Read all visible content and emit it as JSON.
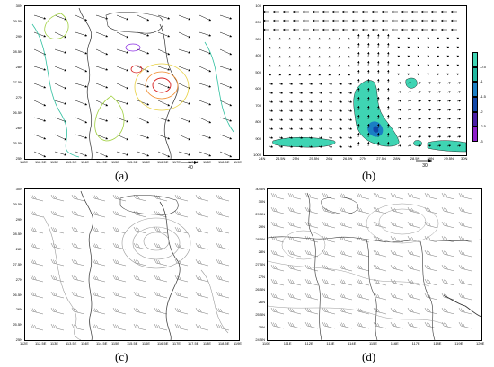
{
  "figure": {
    "panels": [
      {
        "label": "(a)",
        "map": true,
        "y_ticks": [
          "30N",
          "29.5N",
          "29N",
          "28.5N",
          "28N",
          "27.5N",
          "27N",
          "26.5N",
          "26N",
          "25.5N",
          "25N"
        ],
        "x_ticks": [
          "112E",
          "112.5E",
          "113E",
          "113.5E",
          "114E",
          "114.5E",
          "115E",
          "115.5E",
          "116E",
          "116.5E",
          "117E",
          "117.5E",
          "118E",
          "118.5E",
          "119E"
        ],
        "ref_vector": "40",
        "contours_colored": true
      },
      {
        "label": "(b)",
        "map": false,
        "y_ticks": [
          "100",
          "200",
          "300",
          "400",
          "500",
          "600",
          "700",
          "800",
          "900",
          "1000"
        ],
        "x_ticks": [
          "24N",
          "24.5N",
          "25N",
          "25.5N",
          "26N",
          "26.5N",
          "27N",
          "27.5N",
          "28N",
          "28.5N",
          "29N",
          "29.5N",
          "30N"
        ],
        "ref_vector": "30",
        "colorbar": {
          "labels": [
            "-0.5",
            "-1",
            "-1.5",
            "-2",
            "-2.5",
            "-3"
          ],
          "colors": [
            "#3fd4b3",
            "#21b8a0",
            "#1a7fc4",
            "#1046a8",
            "#4a1ea6",
            "#8d1ec9"
          ]
        }
      },
      {
        "label": "(c)",
        "map": true,
        "y_ticks": [
          "30N",
          "29.5N",
          "29N",
          "28.5N",
          "28N",
          "27.5N",
          "27N",
          "26.5N",
          "26N",
          "25.5N",
          "25N"
        ],
        "x_ticks": [
          "112E",
          "112.5E",
          "113E",
          "113.5E",
          "114E",
          "114.5E",
          "115E",
          "115.5E",
          "116E",
          "116.5E",
          "117E",
          "117.5E",
          "118E",
          "118.5E",
          "119E"
        ]
      },
      {
        "label": "(d)",
        "map": true,
        "y_ticks": [
          "30.5N",
          "30N",
          "29.5N",
          "29N",
          "28.5N",
          "28N",
          "27.5N",
          "27N",
          "26.5N",
          "26N",
          "25.5N",
          "25N",
          "24.5N"
        ],
        "x_ticks": [
          "110E",
          "111E",
          "112E",
          "113E",
          "114E",
          "115E",
          "116E",
          "117E",
          "118E",
          "119E",
          "120E"
        ]
      }
    ]
  },
  "colors": {
    "frame": "#000000",
    "arrow": "#000000",
    "contour_gray": "#9a9a9a",
    "boundary": "#333333"
  }
}
